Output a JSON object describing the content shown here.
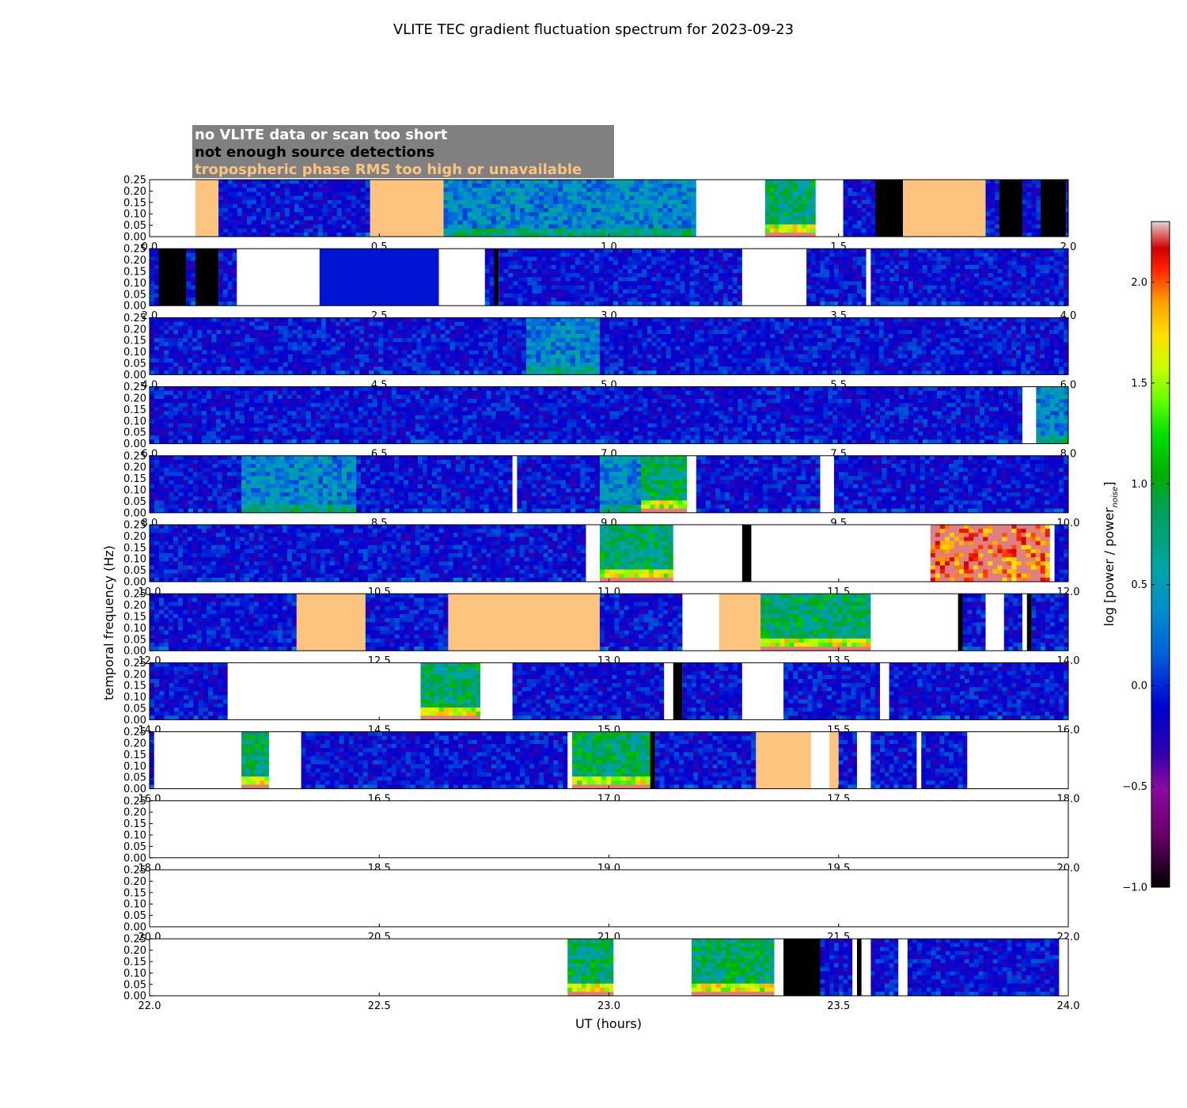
{
  "chart_data": {
    "type": "heatmap",
    "title": "VLITE TEC gradient fluctuation spectrum for 2023-09-23",
    "xlabel": "UT (hours)",
    "ylabel": "temporal frequency (Hz)",
    "colorbar_label": "log [power / power_noise]",
    "colorbar_label_main": "log [power / power",
    "colorbar_label_sub": "noise",
    "colorbar_label_end": "]",
    "colorbar_range": [
      -1.0,
      2.3
    ],
    "colorbar_ticks": [
      "2.0",
      "1.5",
      "1.0",
      "0.5",
      "0.0",
      "−0.5",
      "−1.0"
    ],
    "colorbar_tick_values": [
      2.0,
      1.5,
      1.0,
      0.5,
      0.0,
      -0.5,
      -1.0
    ],
    "y_ticks": [
      "0.00",
      "0.05",
      "0.10",
      "0.15",
      "0.20",
      "0.25"
    ],
    "y_tick_values": [
      0.0,
      0.05,
      0.1,
      0.15,
      0.2,
      0.25
    ],
    "ylim": [
      0,
      0.25
    ],
    "legend": {
      "placement": "top-left",
      "items": [
        {
          "label": "no VLITE data or scan too short",
          "text_color": "#ffffff",
          "fill": "#808080"
        },
        {
          "label": "not enough source detections",
          "text_color": "#000000",
          "fill": "#000000"
        },
        {
          "label": "tropospheric phase RMS too high or unavailable",
          "text_color": "#fdc480",
          "fill": "#fdc480"
        }
      ]
    },
    "category_colors": {
      "nodata": "#ffffff",
      "nodet": "#000000",
      "tropo": "#fdc480"
    },
    "panels": [
      {
        "xlim": [
          0,
          2
        ],
        "x_ticks": [
          "0.0",
          "0.5",
          "1.0",
          "1.5",
          "2.0"
        ],
        "segments": [
          [
            0.0,
            0.1,
            "nodata"
          ],
          [
            0.1,
            0.15,
            "tropo"
          ],
          [
            0.15,
            0.48,
            "data"
          ],
          [
            0.48,
            0.64,
            "tropo"
          ],
          [
            0.64,
            1.19,
            "data",
            "lowmid"
          ],
          [
            1.19,
            1.34,
            "nodata"
          ],
          [
            1.34,
            1.45,
            "data",
            "strong"
          ],
          [
            1.45,
            1.51,
            "nodata"
          ],
          [
            1.51,
            1.58,
            "data"
          ],
          [
            1.58,
            1.64,
            "nodet"
          ],
          [
            1.64,
            1.82,
            "tropo"
          ],
          [
            1.82,
            1.85,
            "data"
          ],
          [
            1.85,
            1.9,
            "nodet"
          ],
          [
            1.9,
            1.94,
            "data"
          ],
          [
            1.94,
            1.995,
            "nodet"
          ],
          [
            1.995,
            2.0,
            "data"
          ]
        ]
      },
      {
        "xlim": [
          2,
          4
        ],
        "x_ticks": [
          "2.0",
          "2.5",
          "3.0",
          "3.5",
          "4.0"
        ],
        "segments": [
          [
            2.0,
            2.02,
            "data"
          ],
          [
            2.02,
            2.08,
            "nodet"
          ],
          [
            2.08,
            2.1,
            "data"
          ],
          [
            2.1,
            2.15,
            "nodet"
          ],
          [
            2.15,
            2.19,
            "data"
          ],
          [
            2.19,
            2.37,
            "nodata"
          ],
          [
            2.37,
            2.63,
            "flat"
          ],
          [
            2.63,
            2.73,
            "nodata"
          ],
          [
            2.73,
            2.75,
            "data"
          ],
          [
            2.75,
            2.76,
            "nodet"
          ],
          [
            2.76,
            3.29,
            "data"
          ],
          [
            3.29,
            3.43,
            "nodata"
          ],
          [
            3.43,
            3.56,
            "data"
          ],
          [
            3.56,
            3.57,
            "nodata"
          ],
          [
            3.57,
            4.0,
            "data"
          ]
        ]
      },
      {
        "xlim": [
          4,
          6
        ],
        "x_ticks": [
          "4.0",
          "4.5",
          "5.0",
          "5.5",
          "6.0"
        ],
        "segments": [
          [
            4.0,
            4.82,
            "data"
          ],
          [
            4.82,
            4.98,
            "data",
            "lowmid"
          ],
          [
            4.98,
            6.0,
            "data"
          ]
        ]
      },
      {
        "xlim": [
          6,
          8
        ],
        "x_ticks": [
          "6.0",
          "6.5",
          "7.0",
          "7.5",
          "8.0"
        ],
        "segments": [
          [
            6.0,
            7.9,
            "data"
          ],
          [
            7.9,
            7.93,
            "nodata"
          ],
          [
            7.93,
            8.0,
            "data",
            "lowmid"
          ]
        ]
      },
      {
        "xlim": [
          8,
          10
        ],
        "x_ticks": [
          "8.0",
          "8.5",
          "9.0",
          "9.5",
          "10.0"
        ],
        "segments": [
          [
            8.0,
            8.2,
            "data"
          ],
          [
            8.2,
            8.45,
            "data",
            "lowmid"
          ],
          [
            8.45,
            8.79,
            "data"
          ],
          [
            8.79,
            8.8,
            "nodata"
          ],
          [
            8.8,
            8.98,
            "data"
          ],
          [
            8.98,
            9.07,
            "data",
            "lowmid"
          ],
          [
            9.07,
            9.17,
            "data",
            "strong"
          ],
          [
            9.17,
            9.19,
            "nodata"
          ],
          [
            9.19,
            9.46,
            "data"
          ],
          [
            9.46,
            9.49,
            "nodata"
          ],
          [
            9.49,
            10.0,
            "data"
          ]
        ]
      },
      {
        "xlim": [
          10,
          12
        ],
        "x_ticks": [
          "10.0",
          "10.5",
          "11.0",
          "11.5",
          "12.0"
        ],
        "segments": [
          [
            10.0,
            10.95,
            "data"
          ],
          [
            10.95,
            10.98,
            "nodata"
          ],
          [
            10.98,
            11.14,
            "data",
            "strong"
          ],
          [
            11.14,
            11.29,
            "nodata"
          ],
          [
            11.29,
            11.31,
            "nodet"
          ],
          [
            11.31,
            11.7,
            "nodata"
          ],
          [
            11.7,
            11.96,
            "data",
            "hot"
          ],
          [
            11.96,
            11.97,
            "nodata"
          ],
          [
            11.97,
            12.0,
            "data"
          ]
        ]
      },
      {
        "xlim": [
          12,
          14
        ],
        "x_ticks": [
          "12.0",
          "12.5",
          "13.0",
          "13.5",
          "14.0"
        ],
        "segments": [
          [
            12.0,
            12.32,
            "data"
          ],
          [
            12.32,
            12.47,
            "tropo"
          ],
          [
            12.47,
            12.65,
            "data"
          ],
          [
            12.65,
            12.98,
            "tropo"
          ],
          [
            12.98,
            13.16,
            "data"
          ],
          [
            13.16,
            13.24,
            "nodata"
          ],
          [
            13.24,
            13.33,
            "tropo"
          ],
          [
            13.33,
            13.57,
            "data",
            "strong"
          ],
          [
            13.57,
            13.76,
            "nodata"
          ],
          [
            13.76,
            13.77,
            "nodet"
          ],
          [
            13.77,
            13.82,
            "data"
          ],
          [
            13.82,
            13.86,
            "nodata"
          ],
          [
            13.86,
            13.9,
            "data"
          ],
          [
            13.9,
            13.91,
            "nodata"
          ],
          [
            13.91,
            13.92,
            "nodet"
          ],
          [
            13.92,
            14.0,
            "data"
          ]
        ]
      },
      {
        "xlim": [
          14,
          16
        ],
        "x_ticks": [
          "14.0",
          "14.5",
          "15.0",
          "15.5",
          "16.0"
        ],
        "segments": [
          [
            14.0,
            14.17,
            "data"
          ],
          [
            14.17,
            14.59,
            "nodata"
          ],
          [
            14.59,
            14.72,
            "data",
            "strong"
          ],
          [
            14.72,
            14.79,
            "nodata"
          ],
          [
            14.79,
            15.12,
            "data"
          ],
          [
            15.12,
            15.14,
            "nodata"
          ],
          [
            15.14,
            15.16,
            "nodet"
          ],
          [
            15.16,
            15.29,
            "data"
          ],
          [
            15.29,
            15.38,
            "nodata"
          ],
          [
            15.38,
            15.59,
            "data"
          ],
          [
            15.59,
            15.61,
            "nodata"
          ],
          [
            15.61,
            16.0,
            "data"
          ]
        ]
      },
      {
        "xlim": [
          16,
          18
        ],
        "x_ticks": [
          "16.0",
          "16.5",
          "17.0",
          "17.5",
          "18.0"
        ],
        "segments": [
          [
            16.0,
            16.01,
            "data"
          ],
          [
            16.01,
            16.2,
            "nodata"
          ],
          [
            16.2,
            16.26,
            "data",
            "strong"
          ],
          [
            16.26,
            16.33,
            "nodata"
          ],
          [
            16.33,
            16.91,
            "data"
          ],
          [
            16.91,
            16.92,
            "nodata"
          ],
          [
            16.92,
            17.09,
            "data",
            "strong"
          ],
          [
            17.09,
            17.1,
            "nodet"
          ],
          [
            17.1,
            17.32,
            "data"
          ],
          [
            17.32,
            17.44,
            "tropo"
          ],
          [
            17.44,
            17.48,
            "nodata"
          ],
          [
            17.48,
            17.5,
            "tropo"
          ],
          [
            17.5,
            17.54,
            "data"
          ],
          [
            17.54,
            17.57,
            "nodata"
          ],
          [
            17.57,
            17.67,
            "data"
          ],
          [
            17.67,
            17.68,
            "nodata"
          ],
          [
            17.68,
            17.78,
            "data"
          ],
          [
            17.78,
            18.0,
            "nodata"
          ]
        ]
      },
      {
        "xlim": [
          18,
          20
        ],
        "x_ticks": [
          "18.0",
          "18.5",
          "19.0",
          "19.5",
          "20.0"
        ],
        "segments": [
          [
            18.0,
            20.0,
            "nodata"
          ]
        ]
      },
      {
        "xlim": [
          20,
          22
        ],
        "x_ticks": [
          "20.0",
          "20.5",
          "21.0",
          "21.5",
          "22.0"
        ],
        "segments": [
          [
            20.0,
            22.0,
            "nodata"
          ]
        ]
      },
      {
        "xlim": [
          22,
          24
        ],
        "x_ticks": [
          "22.0",
          "22.5",
          "23.0",
          "23.5",
          "24.0"
        ],
        "segments": [
          [
            22.0,
            22.91,
            "nodata"
          ],
          [
            22.91,
            23.01,
            "data",
            "strong"
          ],
          [
            23.01,
            23.18,
            "nodata"
          ],
          [
            23.18,
            23.36,
            "data",
            "strong"
          ],
          [
            23.36,
            23.38,
            "nodata"
          ],
          [
            23.38,
            23.46,
            "nodet"
          ],
          [
            23.46,
            23.53,
            "data"
          ],
          [
            23.53,
            23.54,
            "nodata"
          ],
          [
            23.54,
            23.55,
            "nodet"
          ],
          [
            23.55,
            23.57,
            "nodata"
          ],
          [
            23.57,
            23.63,
            "data"
          ],
          [
            23.63,
            23.65,
            "nodata"
          ],
          [
            23.65,
            23.98,
            "data"
          ],
          [
            23.98,
            24.0,
            "nodata"
          ]
        ]
      }
    ]
  }
}
